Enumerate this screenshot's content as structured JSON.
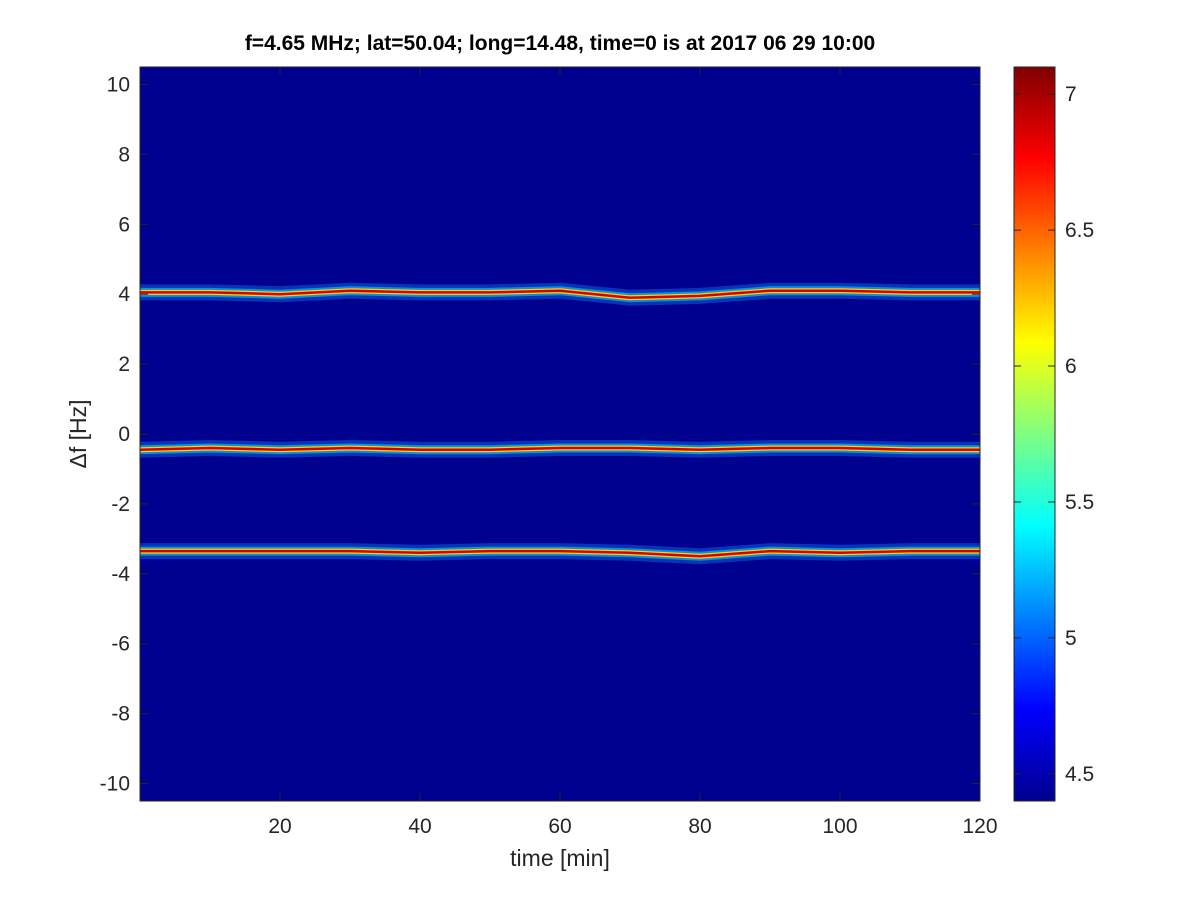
{
  "chart_data": {
    "type": "heatmap",
    "title": "f=4.65 MHz;  lat=50.04; long=14.48, time=0 is at 2017 06 29 10:00",
    "xlabel": "time [min]",
    "ylabel": "Δf [Hz]",
    "xlim": [
      0,
      120
    ],
    "ylim": [
      -10.5,
      10.5
    ],
    "xticks": [
      20,
      40,
      60,
      80,
      100,
      120
    ],
    "yticks": [
      -10,
      -8,
      -6,
      -4,
      -2,
      0,
      2,
      4,
      6,
      8,
      10
    ],
    "colorbar": {
      "range": [
        4.4,
        7.1
      ],
      "ticks": [
        4.5,
        5,
        5.5,
        6,
        6.5,
        7
      ],
      "colormap": "jet"
    },
    "background_value": 4.45,
    "traces": [
      {
        "label": "upper trace",
        "points": [
          [
            0,
            4.05
          ],
          [
            10,
            4.05
          ],
          [
            20,
            4.0
          ],
          [
            30,
            4.1
          ],
          [
            40,
            4.05
          ],
          [
            50,
            4.05
          ],
          [
            60,
            4.1
          ],
          [
            70,
            3.9
          ],
          [
            80,
            3.95
          ],
          [
            90,
            4.1
          ],
          [
            100,
            4.1
          ],
          [
            110,
            4.05
          ],
          [
            120,
            4.05
          ]
        ]
      },
      {
        "label": "middle trace",
        "points": [
          [
            0,
            -0.45
          ],
          [
            10,
            -0.4
          ],
          [
            20,
            -0.45
          ],
          [
            30,
            -0.4
          ],
          [
            40,
            -0.45
          ],
          [
            50,
            -0.45
          ],
          [
            60,
            -0.4
          ],
          [
            70,
            -0.4
          ],
          [
            80,
            -0.45
          ],
          [
            90,
            -0.4
          ],
          [
            100,
            -0.4
          ],
          [
            110,
            -0.45
          ],
          [
            120,
            -0.45
          ]
        ]
      },
      {
        "label": "lower trace",
        "points": [
          [
            0,
            -3.35
          ],
          [
            10,
            -3.35
          ],
          [
            20,
            -3.35
          ],
          [
            30,
            -3.35
          ],
          [
            40,
            -3.4
          ],
          [
            50,
            -3.35
          ],
          [
            60,
            -3.35
          ],
          [
            70,
            -3.4
          ],
          [
            80,
            -3.5
          ],
          [
            90,
            -3.35
          ],
          [
            100,
            -3.4
          ],
          [
            110,
            -3.35
          ],
          [
            120,
            -3.35
          ]
        ]
      }
    ],
    "grid": false,
    "legend": "none"
  }
}
